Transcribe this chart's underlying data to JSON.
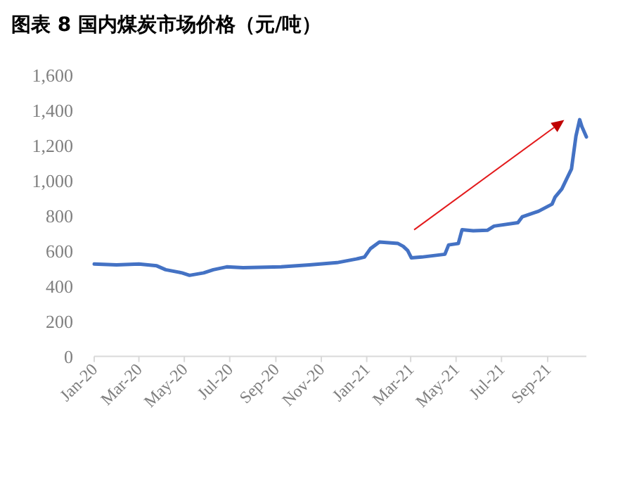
{
  "chart_data": {
    "type": "line",
    "title": "图表 8 国内煤炭市场价格（元/吨）",
    "x": [
      "2020-01-01",
      "2020-01-31",
      "2020-03-01",
      "2020-03-25",
      "2020-04-06",
      "2020-04-28",
      "2020-05-08",
      "2020-05-27",
      "2020-06-09",
      "2020-06-27",
      "2020-07-19",
      "2020-09-08",
      "2020-10-16",
      "2020-11-22",
      "2020-12-18",
      "2020-12-29",
      "2021-01-06",
      "2021-01-18",
      "2021-02-12",
      "2021-02-19",
      "2021-02-25",
      "2021-03-02",
      "2021-03-16",
      "2021-04-16",
      "2021-04-21",
      "2021-05-04",
      "2021-05-09",
      "2021-05-24",
      "2021-06-12",
      "2021-06-21",
      "2021-07-23",
      "2021-07-29",
      "2021-08-20",
      "2021-09-07",
      "2021-09-11",
      "2021-09-20",
      "2021-10-03",
      "2021-10-09",
      "2021-10-14",
      "2021-10-17",
      "2021-10-23"
    ],
    "series": [
      {
        "color": "#4472c4",
        "values": [
          525,
          520,
          525,
          515,
          493,
          475,
          461,
          475,
          493,
          509,
          504,
          509,
          520,
          533,
          554,
          565,
          613,
          650,
          642,
          626,
          602,
          560,
          565,
          581,
          634,
          642,
          720,
          714,
          717,
          741,
          760,
          794,
          826,
          866,
          906,
          952,
          1066,
          1253,
          1346,
          1306,
          1248
        ]
      }
    ],
    "xlim": [
      "2020-01-01",
      "2021-10-23"
    ],
    "xticks": [
      {
        "value": "2020-01-01",
        "label": "Jan-20"
      },
      {
        "value": "2020-03-01",
        "label": "Mar-20"
      },
      {
        "value": "2020-05-01",
        "label": "May-20"
      },
      {
        "value": "2020-07-01",
        "label": "Jul-20"
      },
      {
        "value": "2020-09-01",
        "label": "Sep-20"
      },
      {
        "value": "2020-11-01",
        "label": "Nov-20"
      },
      {
        "value": "2021-01-01",
        "label": "Jan-21"
      },
      {
        "value": "2021-03-01",
        "label": "Mar-21"
      },
      {
        "value": "2021-05-01",
        "label": "May-21"
      },
      {
        "value": "2021-07-01",
        "label": "Jul-21"
      },
      {
        "value": "2021-09-01",
        "label": "Sep-21"
      }
    ],
    "ylim": [
      0,
      1600
    ],
    "yticks": [
      0,
      200,
      400,
      600,
      800,
      {
        "value": 1000,
        "label": "1,000"
      },
      {
        "value": 1200,
        "label": "1,200"
      },
      {
        "value": 1400,
        "label": "1,400"
      },
      {
        "value": 1600,
        "label": "1,600"
      }
    ],
    "grid": false,
    "marker": "none",
    "line_style": "solid"
  }
}
